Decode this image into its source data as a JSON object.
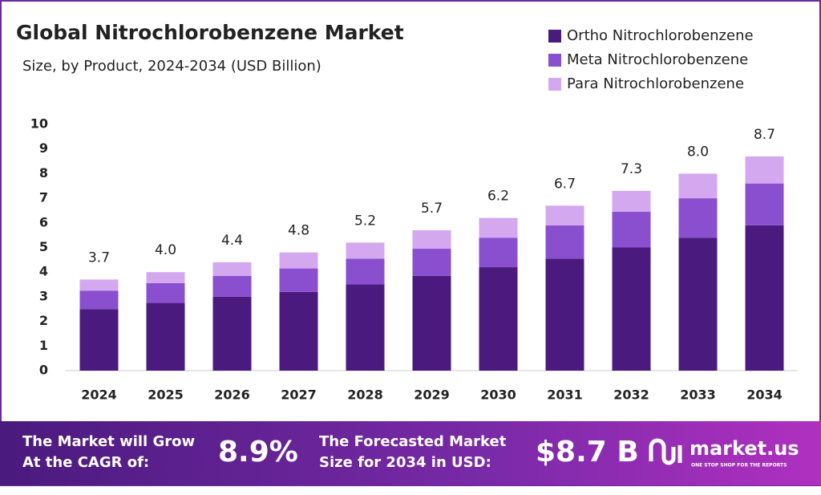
{
  "chart_data": {
    "type": "stacked_bar",
    "title": "Global Nitrochlorobenzene Market",
    "subtitle": "Size, by Product, 2024-2034 (USD Billion)",
    "categories": [
      "2024",
      "2025",
      "2026",
      "2027",
      "2028",
      "2029",
      "2030",
      "2031",
      "2032",
      "2033",
      "2034"
    ],
    "series": [
      {
        "name": "Ortho Nitrochlorobenzene",
        "color": "#4a1a7e",
        "values": [
          2.5,
          2.75,
          3.0,
          3.2,
          3.5,
          3.85,
          4.2,
          4.55,
          5.0,
          5.4,
          5.9
        ]
      },
      {
        "name": "Meta Nitrochlorobenzene",
        "color": "#8a4fcf",
        "values": [
          0.75,
          0.8,
          0.85,
          0.95,
          1.05,
          1.1,
          1.2,
          1.35,
          1.45,
          1.6,
          1.7
        ]
      },
      {
        "name": "Para Nitrochlorobenzene",
        "color": "#d4a8ef",
        "values": [
          0.45,
          0.45,
          0.55,
          0.65,
          0.65,
          0.75,
          0.8,
          0.8,
          0.85,
          1.0,
          1.1
        ]
      }
    ],
    "totals": [
      3.7,
      4.0,
      4.4,
      4.8,
      5.2,
      5.7,
      6.2,
      6.7,
      7.3,
      8.0,
      8.7
    ],
    "total_labels": [
      "3.7",
      "4.0",
      "4.4",
      "4.8",
      "5.2",
      "5.7",
      "6.2",
      "6.7",
      "7.3",
      "8.0",
      "8.7"
    ],
    "ylim": [
      0,
      10
    ],
    "yticks": [
      0,
      1,
      2,
      3,
      4,
      5,
      6,
      7,
      8,
      9,
      10
    ],
    "grid": false,
    "legend": "top-right"
  },
  "footer": {
    "cagr_text": [
      "The Market will Grow",
      "At the CAGR of:"
    ],
    "cagr_value": "8.9%",
    "forecast_text": [
      "The Forecasted Market",
      "Size for 2034 in USD:"
    ],
    "forecast_value": "$8.7 B",
    "brand": "market.us",
    "tagline": "ONE STOP SHOP FOR THE REPORTS"
  }
}
